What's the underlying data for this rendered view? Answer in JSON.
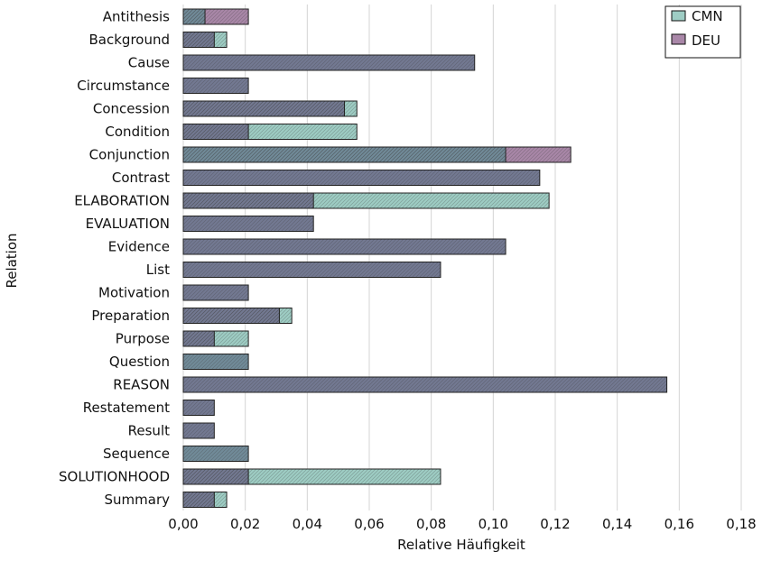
{
  "chart_data": {
    "type": "bar",
    "orientation": "horizontal",
    "overlay": "overlapping",
    "xlabel": "Relative Häufigkeit",
    "ylabel": "Relation",
    "xlim": [
      0,
      0.18
    ],
    "x_ticks": [
      0,
      0.02,
      0.04,
      0.06,
      0.08,
      0.1,
      0.12,
      0.14,
      0.16,
      0.18
    ],
    "x_tick_labels": [
      "0,00",
      "0,02",
      "0,04",
      "0,06",
      "0,08",
      "0,10",
      "0,12",
      "0,14",
      "0,16",
      "0,18"
    ],
    "grid": "vertical",
    "legend_position": "top-right",
    "categories": [
      "Antithesis",
      "Background",
      "Cause",
      "Circumstance",
      "Concession",
      "Condition",
      "Conjunction",
      "Contrast",
      "ELABORATION",
      "EVALUATION",
      "Evidence",
      "List",
      "Motivation",
      "Preparation",
      "Purpose",
      "Question",
      "REASON",
      "Restatement",
      "Result",
      "Sequence",
      "SOLUTIONHOOD",
      "Summary"
    ],
    "series": [
      {
        "name": "CMN",
        "color": "#9ecdc4",
        "values": [
          0.007,
          0.014,
          0.0,
          0.0,
          0.056,
          0.056,
          0.104,
          0.0,
          0.118,
          0.0,
          0.0,
          0.0,
          0.0,
          0.035,
          0.021,
          0.021,
          0.0,
          0.0,
          0.0,
          0.021,
          0.083,
          0.014
        ]
      },
      {
        "name": "DEU",
        "color": "#a987a8",
        "values": [
          0.021,
          0.01,
          0.094,
          0.021,
          0.052,
          0.021,
          0.125,
          0.115,
          0.042,
          0.042,
          0.104,
          0.083,
          0.021,
          0.031,
          0.01,
          0.0,
          0.156,
          0.01,
          0.01,
          0.0,
          0.021,
          0.01
        ]
      }
    ]
  }
}
